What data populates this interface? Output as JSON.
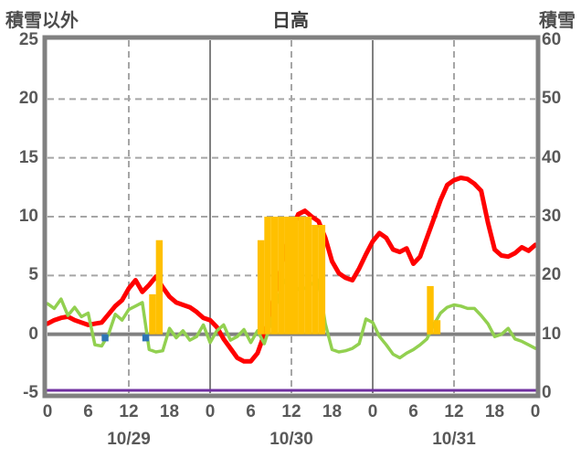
{
  "header": {
    "left_axis_title": "積雪以外",
    "title": "日高",
    "right_axis_title": "積雪"
  },
  "colors": {
    "red_line": "#ff0000",
    "green_line": "#92d050",
    "orange_bar": "#ffc000",
    "blue_bar": "#2e75b6",
    "purple_line": "#7030a0",
    "grid": "#a6a6a6",
    "axis": "#808080",
    "label": "#595959"
  },
  "chart_data": {
    "type": "line",
    "subtype": "weather combo chart (lines + hourly bars), dual y-axis",
    "title": "日高",
    "x_axis": {
      "unit": "hour",
      "range_hours": [
        0,
        72
      ],
      "tick_step_hours": 6,
      "hour_tick_labels": [
        "0",
        "6",
        "12",
        "18",
        "0",
        "6",
        "12",
        "18",
        "0",
        "6",
        "12",
        "18",
        "0"
      ],
      "date_labels": [
        "10/29",
        "10/30",
        "10/31"
      ],
      "date_center_hours": [
        12,
        36,
        60
      ],
      "day_boundary_hours": [
        24,
        48
      ],
      "noon_dashed_hours": [
        12,
        36,
        60
      ]
    },
    "left_axis": {
      "title": "積雪以外",
      "min": -5,
      "max": 25,
      "ticks": [
        25,
        20,
        15,
        10,
        5,
        0,
        -5
      ],
      "dashed_gridline_values": [
        20,
        15,
        10,
        5
      ],
      "solid_zero_line_value": 0
    },
    "right_axis": {
      "title": "積雪",
      "min": 0,
      "max": 60,
      "ticks": [
        60,
        50,
        40,
        30,
        20,
        10,
        0
      ]
    },
    "series": [
      {
        "id": "red_line",
        "name": "red-line-left-axis",
        "type": "line",
        "axis": "left",
        "color_key": "red_line",
        "stroke_width": 5,
        "hourly_values": [
          0.9,
          1.2,
          1.4,
          1.5,
          1.2,
          1.0,
          0.8,
          0.9,
          1.0,
          1.7,
          2.4,
          2.9,
          3.9,
          4.6,
          3.6,
          4.2,
          4.9,
          4.0,
          3.2,
          2.7,
          2.5,
          2.3,
          1.9,
          1.4,
          1.2,
          0.6,
          -0.4,
          -1.2,
          -2.0,
          -2.3,
          -2.3,
          -1.6,
          0.0,
          2.0,
          4.5,
          7.0,
          8.8,
          10.2,
          10.5,
          10.0,
          9.6,
          8.2,
          6.2,
          5.2,
          4.8,
          4.6,
          5.6,
          6.8,
          7.9,
          8.6,
          8.2,
          7.2,
          7.0,
          7.3,
          6.0,
          6.6,
          8.2,
          9.8,
          11.4,
          12.7,
          13.1,
          13.3,
          13.2,
          12.8,
          12.2,
          9.5,
          7.2,
          6.7,
          6.6,
          6.9,
          7.4,
          7.1,
          7.6
        ]
      },
      {
        "id": "green_line",
        "name": "green-line-left-axis",
        "type": "line",
        "axis": "left",
        "color_key": "green_line",
        "stroke_width": 3.5,
        "hourly_values": [
          2.6,
          2.2,
          3.0,
          1.6,
          2.3,
          1.5,
          1.8,
          -0.9,
          -1.0,
          0.0,
          1.7,
          1.2,
          2.1,
          2.4,
          2.7,
          -1.3,
          -1.5,
          -1.4,
          0.5,
          -0.3,
          0.3,
          -0.5,
          -0.2,
          0.8,
          -0.7,
          0.3,
          0.8,
          -0.5,
          -0.2,
          0.4,
          -0.7,
          0.3,
          -0.8,
          1.0,
          3.1,
          4.6,
          4.5,
          3.8,
          3.9,
          4.3,
          4.6,
          0.9,
          -1.3,
          -1.5,
          -1.4,
          -1.2,
          -0.8,
          1.3,
          1.0,
          -0.2,
          -0.9,
          -1.7,
          -2.0,
          -1.6,
          -1.3,
          -0.9,
          -0.4,
          0.8,
          1.8,
          2.3,
          2.5,
          2.4,
          2.2,
          2.2,
          1.6,
          0.9,
          -0.2,
          0.0,
          0.5,
          -0.4,
          -0.6,
          -0.9,
          -1.2
        ]
      },
      {
        "id": "orange_bars",
        "name": "orange-hourly-bars-left-axis",
        "type": "bar",
        "axis": "left",
        "color_key": "orange_bar",
        "bars_hour_value": [
          [
            15,
            3.4
          ],
          [
            16,
            8.0
          ],
          [
            31,
            8.0
          ],
          [
            32,
            10
          ],
          [
            33,
            10
          ],
          [
            34,
            10
          ],
          [
            35,
            10
          ],
          [
            36,
            10
          ],
          [
            37,
            10
          ],
          [
            38,
            10
          ],
          [
            39,
            9.3
          ],
          [
            40,
            9.3
          ],
          [
            56,
            4.1
          ],
          [
            57,
            1.2
          ]
        ]
      },
      {
        "id": "blue_bars",
        "name": "blue-hourly-bars-below-zero",
        "type": "bar",
        "axis": "left",
        "color_key": "blue_bar",
        "bars_hour_value": [
          [
            8,
            -0.6
          ],
          [
            14,
            -0.6
          ]
        ]
      },
      {
        "id": "purple_line",
        "name": "purple-flat-line-right-axis",
        "type": "line",
        "axis": "right",
        "color_key": "purple_line",
        "stroke_width": 3,
        "constant_value": 0
      }
    ]
  }
}
